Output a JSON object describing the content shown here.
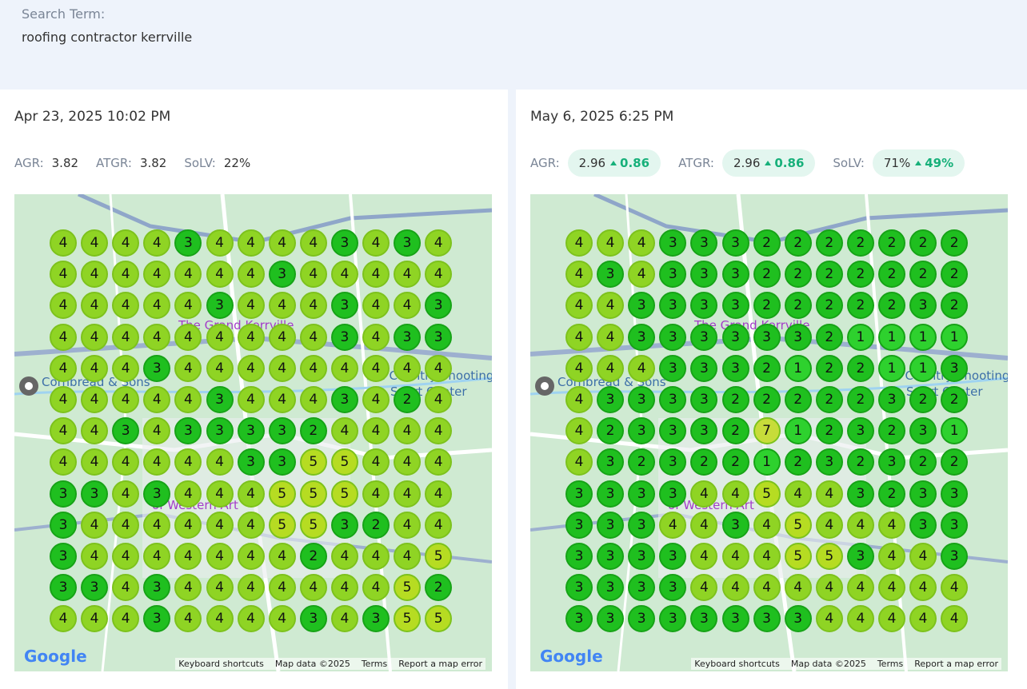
{
  "search": {
    "label": "Search Term:",
    "term": "roofing contractor kerrville"
  },
  "panels": [
    {
      "date": "Apr 23, 2025 10:02 PM",
      "metrics": [
        {
          "label": "AGR:",
          "value": "3.82"
        },
        {
          "label": "ATGR:",
          "value": "3.82"
        },
        {
          "label": "SoLV:",
          "value": "22%"
        }
      ],
      "grid": [
        [
          4,
          4,
          4,
          4,
          3,
          4,
          4,
          4,
          4,
          3,
          4,
          3,
          4
        ],
        [
          4,
          4,
          4,
          4,
          4,
          4,
          4,
          3,
          4,
          4,
          4,
          4,
          4
        ],
        [
          4,
          4,
          4,
          4,
          4,
          3,
          4,
          4,
          4,
          3,
          4,
          4,
          3
        ],
        [
          4,
          4,
          4,
          4,
          4,
          4,
          4,
          4,
          4,
          3,
          4,
          3,
          3
        ],
        [
          4,
          4,
          4,
          3,
          4,
          4,
          4,
          4,
          4,
          4,
          4,
          4,
          4
        ],
        [
          4,
          4,
          4,
          4,
          4,
          3,
          4,
          4,
          4,
          3,
          4,
          2,
          4
        ],
        [
          4,
          4,
          3,
          4,
          3,
          3,
          3,
          3,
          2,
          4,
          4,
          4,
          4
        ],
        [
          4,
          4,
          4,
          4,
          4,
          4,
          3,
          3,
          5,
          5,
          4,
          4,
          4
        ],
        [
          3,
          3,
          4,
          3,
          4,
          4,
          4,
          5,
          5,
          5,
          4,
          4,
          4
        ],
        [
          3,
          4,
          4,
          4,
          4,
          4,
          4,
          5,
          5,
          3,
          2,
          4,
          4
        ],
        [
          3,
          4,
          4,
          4,
          4,
          4,
          4,
          4,
          2,
          4,
          4,
          4,
          5
        ],
        [
          3,
          3,
          4,
          3,
          4,
          4,
          4,
          4,
          4,
          4,
          4,
          5,
          2
        ],
        [
          4,
          4,
          4,
          3,
          4,
          4,
          4,
          4,
          3,
          4,
          3,
          5,
          5
        ]
      ]
    },
    {
      "date": "May 6, 2025 6:25 PM",
      "metrics": [
        {
          "label": "AGR:",
          "value": "2.96",
          "change": "0.86"
        },
        {
          "label": "ATGR:",
          "value": "2.96",
          "change": "0.86"
        },
        {
          "label": "SoLV:",
          "value": "71%",
          "change": "49%"
        }
      ],
      "grid": [
        [
          4,
          4,
          4,
          3,
          3,
          3,
          2,
          2,
          2,
          2,
          2,
          2,
          2
        ],
        [
          4,
          3,
          4,
          3,
          3,
          3,
          2,
          2,
          2,
          2,
          2,
          2,
          2
        ],
        [
          4,
          4,
          3,
          3,
          3,
          3,
          2,
          2,
          2,
          2,
          2,
          3,
          2
        ],
        [
          4,
          4,
          3,
          3,
          3,
          3,
          3,
          3,
          2,
          1,
          1,
          1,
          1
        ],
        [
          4,
          4,
          4,
          3,
          3,
          3,
          2,
          1,
          2,
          2,
          1,
          1,
          3
        ],
        [
          4,
          3,
          3,
          3,
          3,
          2,
          2,
          2,
          2,
          2,
          3,
          2,
          2
        ],
        [
          4,
          2,
          3,
          3,
          3,
          2,
          7,
          1,
          2,
          3,
          2,
          3,
          1
        ],
        [
          4,
          3,
          2,
          3,
          2,
          2,
          1,
          2,
          3,
          2,
          3,
          2,
          2
        ],
        [
          3,
          3,
          3,
          3,
          4,
          4,
          5,
          4,
          4,
          3,
          2,
          3,
          3
        ],
        [
          3,
          3,
          3,
          4,
          4,
          3,
          4,
          5,
          4,
          4,
          4,
          3,
          3
        ],
        [
          3,
          3,
          3,
          3,
          4,
          4,
          4,
          5,
          5,
          3,
          4,
          4,
          3
        ],
        [
          3,
          3,
          3,
          3,
          4,
          4,
          4,
          4,
          4,
          4,
          4,
          4,
          4
        ],
        [
          3,
          3,
          3,
          3,
          3,
          3,
          3,
          3,
          4,
          4,
          4,
          4,
          4
        ]
      ]
    }
  ],
  "map": {
    "places": [
      "Cornbread & Sons",
      "Hill Country Shooting",
      "Sport Center",
      "of Western Art",
      "The Grand Kerrville"
    ],
    "logo": "Google",
    "footer": [
      "Keyboard shortcuts",
      "Map data ©2025",
      "Terms",
      "Report a map error"
    ]
  }
}
